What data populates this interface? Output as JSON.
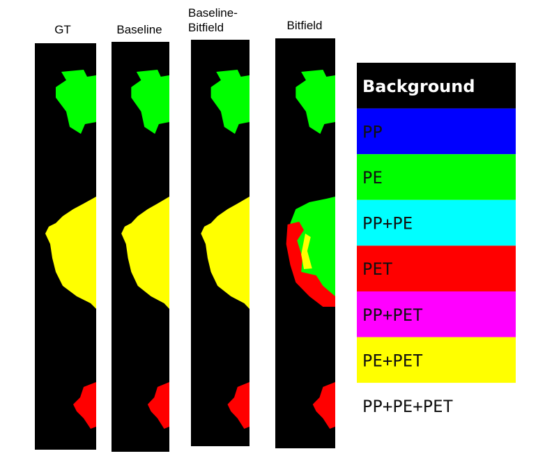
{
  "panels": [
    {
      "title": "GT"
    },
    {
      "title": "Baseline"
    },
    {
      "title": "Baseline-Bitfield"
    },
    {
      "title": "Bitfield"
    }
  ],
  "legend": [
    {
      "label": "Background",
      "color": "#000000"
    },
    {
      "label": "PP",
      "color": "#0000ff"
    },
    {
      "label": "PE",
      "color": "#00ff00"
    },
    {
      "label": "PP+PE",
      "color": "#00ffff"
    },
    {
      "label": "PET",
      "color": "#ff0000"
    },
    {
      "label": "PP+PET",
      "color": "#ff00ff"
    },
    {
      "label": "PE+PET",
      "color": "#ffff00"
    },
    {
      "label": "PP+PE+PET",
      "color": "#ffffff"
    }
  ]
}
